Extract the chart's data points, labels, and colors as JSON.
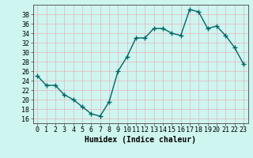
{
  "x": [
    0,
    1,
    2,
    3,
    4,
    5,
    6,
    7,
    8,
    9,
    10,
    11,
    12,
    13,
    14,
    15,
    16,
    17,
    18,
    19,
    20,
    21,
    22,
    23
  ],
  "y": [
    25,
    23,
    23,
    21,
    20,
    18.5,
    17,
    16.5,
    19.5,
    26,
    29,
    33,
    33,
    35,
    35,
    34,
    33.5,
    39,
    38.5,
    35,
    35.5,
    33.5,
    31,
    27.5
  ],
  "xlabel": "Humidex (Indice chaleur)",
  "line_color": "#006666",
  "marker_color": "#006666",
  "bg_color": "#cef5f0",
  "grid_color": "#e8b4b8",
  "ylim": [
    15,
    40
  ],
  "xlim": [
    -0.5,
    23.5
  ],
  "yticks": [
    16,
    18,
    20,
    22,
    24,
    26,
    28,
    30,
    32,
    34,
    36,
    38
  ],
  "xticks": [
    0,
    1,
    2,
    3,
    4,
    5,
    6,
    7,
    8,
    9,
    10,
    11,
    12,
    13,
    14,
    15,
    16,
    17,
    18,
    19,
    20,
    21,
    22,
    23
  ],
  "xtick_labels": [
    "0",
    "1",
    "2",
    "3",
    "4",
    "5",
    "6",
    "7",
    "8",
    "9",
    "10",
    "11",
    "12",
    "13",
    "14",
    "15",
    "16",
    "17",
    "18",
    "19",
    "20",
    "21",
    "22",
    "23"
  ],
  "tick_fontsize": 6,
  "xlabel_fontsize": 7,
  "marker_size": 2.5,
  "line_width": 1.0
}
